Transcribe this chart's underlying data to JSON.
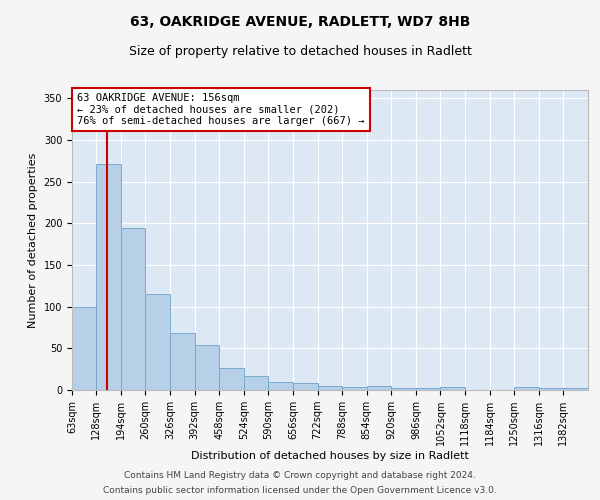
{
  "title_line1": "63, OAKRIDGE AVENUE, RADLETT, WD7 8HB",
  "title_line2": "Size of property relative to detached houses in Radlett",
  "xlabel": "Distribution of detached houses by size in Radlett",
  "ylabel": "Number of detached properties",
  "footer_line1": "Contains HM Land Registry data © Crown copyright and database right 2024.",
  "footer_line2": "Contains public sector information licensed under the Open Government Licence v3.0.",
  "annotation_line1": "63 OAKRIDGE AVENUE: 156sqm",
  "annotation_line2": "← 23% of detached houses are smaller (202)",
  "annotation_line3": "76% of semi-detached houses are larger (667) →",
  "bar_edges": [
    63,
    128,
    194,
    260,
    326,
    392,
    458,
    524,
    590,
    656,
    722,
    788,
    854,
    920,
    986,
    1052,
    1118,
    1184,
    1250,
    1316,
    1382
  ],
  "bar_values": [
    100,
    271,
    195,
    115,
    68,
    54,
    27,
    17,
    10,
    8,
    5,
    4,
    5,
    3,
    3,
    4,
    0,
    0,
    4,
    3,
    3
  ],
  "bar_color": "#b8cfe8",
  "bar_edge_color": "#7aaad0",
  "vline_color": "#cc0000",
  "vline_x": 156,
  "ylim": [
    0,
    360
  ],
  "yticks": [
    0,
    50,
    100,
    150,
    200,
    250,
    300,
    350
  ],
  "annotation_box_edge_color": "#cc0000",
  "background_color": "#dde8f5",
  "grid_color": "#ffffff",
  "fig_facecolor": "#f5f5f5",
  "title_fontsize": 10,
  "subtitle_fontsize": 9,
  "axis_label_fontsize": 8,
  "tick_fontsize": 7,
  "annotation_fontsize": 7.5,
  "footer_fontsize": 6.5
}
